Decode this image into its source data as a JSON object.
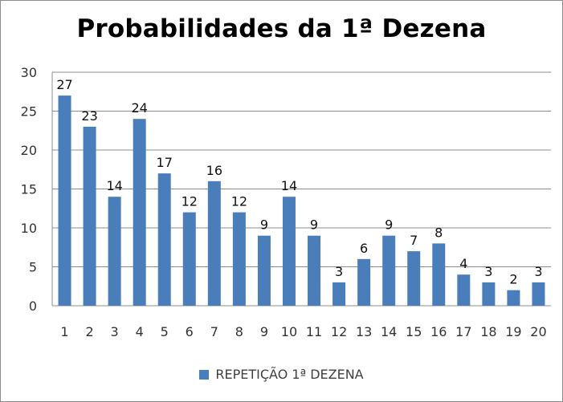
{
  "chart_data": {
    "type": "bar",
    "title": "Probabilidades da 1ª Dezena",
    "xlabel": "",
    "ylabel": "",
    "categories": [
      "1",
      "2",
      "3",
      "4",
      "5",
      "6",
      "7",
      "8",
      "9",
      "10",
      "11",
      "12",
      "13",
      "14",
      "15",
      "16",
      "17",
      "18",
      "19",
      "20"
    ],
    "series": [
      {
        "name": "REPETIÇÃO 1ª DEZENA",
        "values": [
          27,
          23,
          14,
          24,
          17,
          12,
          16,
          12,
          9,
          14,
          9,
          3,
          6,
          9,
          7,
          8,
          4,
          3,
          2,
          3
        ],
        "color": "#4a7ebb"
      }
    ],
    "ylim": [
      0,
      30
    ],
    "yticks": [
      0,
      5,
      10,
      15,
      20,
      25,
      30
    ],
    "grid": true,
    "data_labels": true,
    "legend_position": "bottom"
  }
}
